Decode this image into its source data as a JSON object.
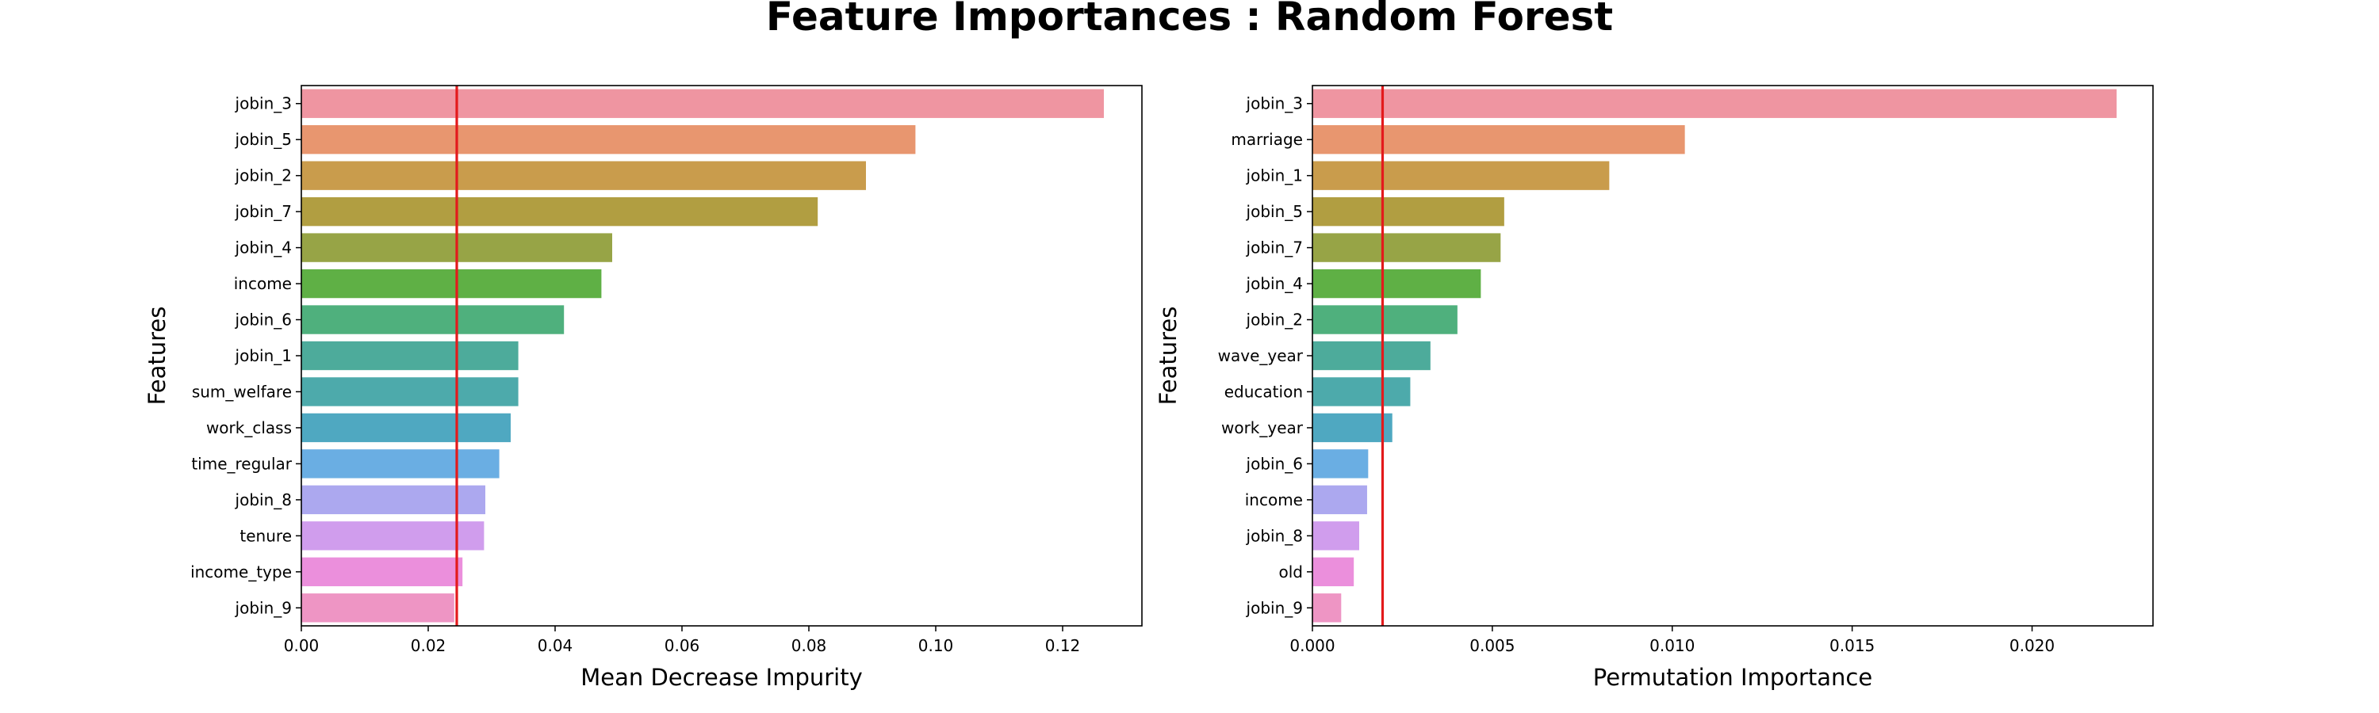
{
  "suptitle": "Feature Importances : Random Forest",
  "chart_data": [
    {
      "type": "bar",
      "orientation": "horizontal",
      "xlabel": "Mean Decrease Impurity",
      "ylabel": "Features",
      "xlim": [
        0,
        0.1325
      ],
      "xticks": [
        0.0,
        0.02,
        0.04,
        0.06,
        0.08,
        0.1,
        0.12
      ],
      "xtick_labels": [
        "0.00",
        "0.02",
        "0.04",
        "0.06",
        "0.08",
        "0.10",
        "0.12"
      ],
      "reference_line": 0.0245,
      "reference_line_color": "#e31a1c",
      "categories": [
        "jobin_3",
        "jobin_5",
        "jobin_2",
        "jobin_7",
        "jobin_4",
        "income",
        "jobin_6",
        "jobin_1",
        "sum_welfare",
        "work_class",
        "time_regular",
        "jobin_8",
        "tenure",
        "income_type",
        "jobin_9"
      ],
      "values": [
        0.1265,
        0.0968,
        0.089,
        0.0814,
        0.049,
        0.0473,
        0.0414,
        0.0342,
        0.0342,
        0.033,
        0.0312,
        0.029,
        0.0288,
        0.0254,
        0.0241
      ],
      "colors": [
        "#ef95a1",
        "#e8966f",
        "#c99c4c",
        "#b19e41",
        "#97a446",
        "#5fb045",
        "#4fb07d",
        "#4dab9b",
        "#4daaab",
        "#4fa8c1",
        "#6aaee3",
        "#aca8ef",
        "#d09ded",
        "#eb8fdc",
        "#ee95c4"
      ],
      "grid": false
    },
    {
      "type": "bar",
      "orientation": "horizontal",
      "xlabel": "Permutation Importance",
      "ylabel": "Features",
      "xlim": [
        0,
        0.02336
      ],
      "xticks": [
        0.0,
        0.005,
        0.01,
        0.015,
        0.02
      ],
      "xtick_labels": [
        "0.000",
        "0.005",
        "0.010",
        "0.015",
        "0.020"
      ],
      "reference_line": 0.00195,
      "reference_line_color": "#e31a1c",
      "categories": [
        "jobin_3",
        "marriage",
        "jobin_1",
        "jobin_5",
        "jobin_7",
        "jobin_4",
        "jobin_2",
        "wave_year",
        "education",
        "work_year",
        "jobin_6",
        "income",
        "jobin_8",
        "old",
        "jobin_9"
      ],
      "values": [
        0.02235,
        0.01035,
        0.00825,
        0.00533,
        0.00523,
        0.00468,
        0.00403,
        0.00328,
        0.00272,
        0.00222,
        0.00155,
        0.00152,
        0.0013,
        0.00115,
        0.0008
      ],
      "colors": [
        "#ef95a1",
        "#e8966f",
        "#c99c4c",
        "#b19e41",
        "#97a446",
        "#5fb045",
        "#4fb07d",
        "#4dab9b",
        "#4daaab",
        "#4fa8c1",
        "#6aaee3",
        "#aca8ef",
        "#d09ded",
        "#eb8fdc",
        "#ee95c4"
      ],
      "grid": false
    }
  ]
}
